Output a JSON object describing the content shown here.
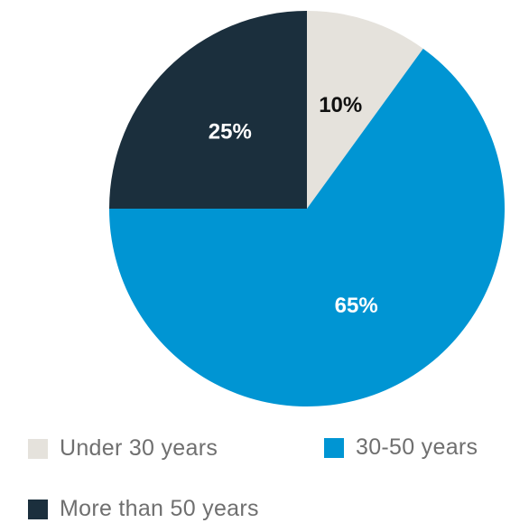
{
  "chart_data": {
    "type": "pie",
    "slices": [
      {
        "label": "Under 30 years",
        "value": 10,
        "display": "10%",
        "color": "#e5e2dc",
        "text_color": "#111111"
      },
      {
        "label": "30-50 years",
        "value": 65,
        "display": "65%",
        "color": "#0095d3",
        "text_color": "#ffffff"
      },
      {
        "label": "More than 50 years",
        "value": 25,
        "display": "25%",
        "color": "#1b2f3d",
        "text_color": "#ffffff"
      }
    ],
    "start_angle": "12 o'clock",
    "direction": "clockwise",
    "legend_position": "bottom"
  }
}
